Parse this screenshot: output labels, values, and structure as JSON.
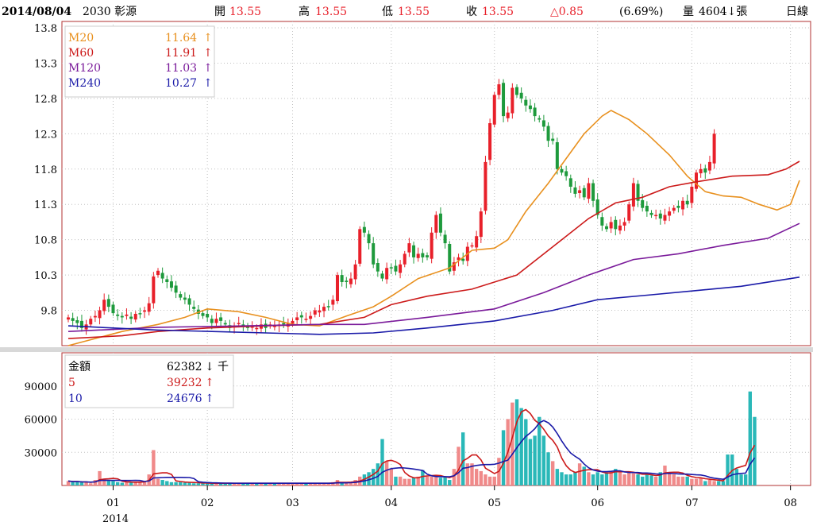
{
  "header": {
    "date": "2014/08/04",
    "stock": "2030 彰源",
    "open_label": "開",
    "open": "13.55",
    "high_label": "高",
    "high": "13.55",
    "low_label": "低",
    "low": "13.55",
    "close_label": "收",
    "close": "13.55",
    "change": "△0.85",
    "change_pct": "(6.69%)",
    "volume_label": "量",
    "volume": "4604↓張",
    "period": "日線"
  },
  "price_legend": [
    {
      "name": "M20",
      "value": "11.64",
      "arrow": "↑",
      "color": "#e8901e"
    },
    {
      "name": "M60",
      "value": "11.91",
      "arrow": "↑",
      "color": "#cc1a1a"
    },
    {
      "name": "M120",
      "value": "11.03",
      "arrow": "↑",
      "color": "#7a1a9a"
    },
    {
      "name": "M240",
      "value": "10.27",
      "arrow": "↑",
      "color": "#1a1aa8"
    }
  ],
  "volume_legend": [
    {
      "name": "金額",
      "value": "62382",
      "arrow": "↓",
      "unit": "千",
      "color": "#000000"
    },
    {
      "name": "5",
      "value": "39232",
      "arrow": "↑",
      "unit": "",
      "color": "#cc1a1a"
    },
    {
      "name": "10",
      "value": "24676",
      "arrow": "↑",
      "unit": "",
      "color": "#1a1aa8"
    }
  ],
  "colors": {
    "up": "#e8202a",
    "down": "#1e9a3c",
    "vol_up": "#f08a8a",
    "vol_down": "#2ab8b8",
    "grid": "#c0c0c0",
    "frame": "#b03030"
  },
  "chart_data": [
    {
      "type": "candlestick",
      "ylim": [
        9.3,
        13.8
      ],
      "yticks": [
        9.8,
        10.3,
        10.8,
        11.3,
        11.8,
        12.3,
        12.8,
        13.3,
        13.8
      ],
      "x_month_labels": [
        "01",
        "02",
        "03",
        "04",
        "05",
        "06",
        "07",
        "08"
      ],
      "x_month_index": [
        10,
        31,
        50,
        72,
        95,
        118,
        139,
        161
      ],
      "year_label": "2014",
      "close": [
        9.7,
        9.65,
        9.62,
        9.55,
        9.6,
        9.68,
        9.72,
        9.8,
        9.95,
        9.85,
        9.76,
        9.72,
        9.7,
        9.74,
        9.68,
        9.75,
        9.75,
        9.8,
        9.9,
        10.28,
        10.36,
        10.25,
        10.2,
        10.12,
        10.05,
        9.98,
        9.95,
        9.88,
        9.82,
        9.75,
        9.72,
        9.7,
        9.62,
        9.68,
        9.65,
        9.6,
        9.55,
        9.58,
        9.62,
        9.58,
        9.55,
        9.57,
        9.55,
        9.6,
        9.55,
        9.6,
        9.58,
        9.6,
        9.6,
        9.62,
        9.65,
        9.7,
        9.7,
        9.68,
        9.72,
        9.8,
        9.8,
        9.85,
        9.85,
        9.95,
        10.3,
        10.2,
        10.2,
        10.25,
        10.45,
        10.95,
        10.9,
        10.75,
        10.45,
        10.35,
        10.25,
        10.4,
        10.4,
        10.35,
        10.45,
        10.6,
        10.75,
        10.55,
        10.6,
        10.55,
        10.55,
        10.9,
        11.15,
        10.9,
        10.75,
        10.35,
        10.48,
        10.55,
        10.5,
        10.7,
        10.72,
        10.85,
        11.2,
        11.9,
        12.45,
        12.85,
        13.0,
        12.55,
        12.6,
        12.95,
        12.85,
        12.8,
        12.7,
        12.65,
        12.55,
        12.5,
        12.4,
        12.2,
        12.2,
        11.8,
        11.75,
        11.7,
        11.55,
        11.45,
        11.5,
        11.4,
        11.6,
        11.35,
        11.15,
        11.0,
        10.95,
        11.05,
        10.95,
        11.0,
        11.05,
        11.3,
        11.6,
        11.35,
        11.25,
        11.2,
        11.15,
        11.15,
        11.1,
        11.15,
        11.2,
        11.25,
        11.25,
        11.35,
        11.3,
        11.55,
        11.75,
        11.8,
        11.75,
        11.9,
        12.3
      ],
      "opens_note": "open/high/low drawn per candle",
      "ma": [
        {
          "name": "M20",
          "color": "#e8901e",
          "points": [
            [
              0,
              9.3
            ],
            [
              12,
              9.5
            ],
            [
              20,
              9.6
            ],
            [
              26,
              9.7
            ],
            [
              31,
              9.82
            ],
            [
              38,
              9.78
            ],
            [
              44,
              9.7
            ],
            [
              50,
              9.6
            ],
            [
              56,
              9.58
            ],
            [
              62,
              9.72
            ],
            [
              68,
              9.85
            ],
            [
              72,
              10.0
            ],
            [
              78,
              10.25
            ],
            [
              85,
              10.4
            ],
            [
              90,
              10.65
            ],
            [
              95,
              10.68
            ],
            [
              98,
              10.8
            ],
            [
              102,
              11.2
            ],
            [
              107,
              11.6
            ],
            [
              111,
              11.95
            ],
            [
              115,
              12.3
            ],
            [
              119,
              12.55
            ],
            [
              121,
              12.63
            ],
            [
              125,
              12.5
            ],
            [
              129,
              12.3
            ],
            [
              134,
              12.0
            ],
            [
              138,
              11.7
            ],
            [
              142,
              11.48
            ],
            [
              146,
              11.42
            ],
            [
              150,
              11.4
            ],
            [
              154,
              11.3
            ],
            [
              158,
              11.22
            ],
            [
              161,
              11.3
            ],
            [
              163,
              11.64
            ]
          ]
        },
        {
          "name": "M60",
          "color": "#cc1a1a",
          "points": [
            [
              0,
              9.4
            ],
            [
              12,
              9.44
            ],
            [
              20,
              9.5
            ],
            [
              31,
              9.55
            ],
            [
              44,
              9.58
            ],
            [
              56,
              9.6
            ],
            [
              66,
              9.7
            ],
            [
              72,
              9.88
            ],
            [
              80,
              10.0
            ],
            [
              90,
              10.1
            ],
            [
              100,
              10.3
            ],
            [
              110,
              10.8
            ],
            [
              116,
              11.1
            ],
            [
              122,
              11.32
            ],
            [
              128,
              11.4
            ],
            [
              134,
              11.55
            ],
            [
              140,
              11.62
            ],
            [
              148,
              11.7
            ],
            [
              156,
              11.72
            ],
            [
              160,
              11.8
            ],
            [
              163,
              11.91
            ]
          ]
        },
        {
          "name": "M120",
          "color": "#7a1a9a",
          "points": [
            [
              0,
              9.5
            ],
            [
              20,
              9.56
            ],
            [
              40,
              9.58
            ],
            [
              56,
              9.6
            ],
            [
              66,
              9.6
            ],
            [
              80,
              9.7
            ],
            [
              95,
              9.82
            ],
            [
              106,
              10.05
            ],
            [
              116,
              10.3
            ],
            [
              126,
              10.52
            ],
            [
              136,
              10.6
            ],
            [
              146,
              10.72
            ],
            [
              156,
              10.82
            ],
            [
              163,
              11.03
            ]
          ]
        },
        {
          "name": "M240",
          "color": "#1a1aa8",
          "points": [
            [
              0,
              9.58
            ],
            [
              10,
              9.55
            ],
            [
              20,
              9.52
            ],
            [
              32,
              9.5
            ],
            [
              44,
              9.48
            ],
            [
              56,
              9.46
            ],
            [
              68,
              9.48
            ],
            [
              80,
              9.55
            ],
            [
              95,
              9.65
            ],
            [
              108,
              9.8
            ],
            [
              118,
              9.95
            ],
            [
              130,
              10.02
            ],
            [
              140,
              10.08
            ],
            [
              150,
              10.14
            ],
            [
              163,
              10.27
            ]
          ]
        }
      ]
    },
    {
      "type": "bar",
      "ylim": [
        0,
        120000
      ],
      "yticks": [
        30000,
        60000,
        90000
      ],
      "values": [
        4000,
        3000,
        3500,
        2800,
        3000,
        2000,
        5000,
        13000,
        6000,
        4000,
        4000,
        3000,
        2500,
        3000,
        3000,
        3500,
        3000,
        4000,
        10000,
        32000,
        6000,
        5000,
        4000,
        3000,
        3000,
        3000,
        2500,
        3000,
        2000,
        2000,
        2000,
        2000,
        2000,
        2000,
        2000,
        2000,
        2000,
        2000,
        2000,
        2000,
        2000,
        2000,
        2000,
        2000,
        2000,
        2000,
        2000,
        2000,
        2000,
        2000,
        2000,
        2000,
        2000,
        2000,
        2000,
        2000,
        2000,
        2000,
        2000,
        3000,
        5000,
        2000,
        2000,
        3000,
        5000,
        8000,
        10000,
        12000,
        15000,
        20000,
        42000,
        22000,
        15000,
        8000,
        8000,
        6000,
        6000,
        7000,
        8000,
        14000,
        8000,
        8000,
        8000,
        7000,
        8000,
        5000,
        15000,
        35000,
        48000,
        20000,
        20000,
        15000,
        13000,
        10000,
        8000,
        8000,
        25000,
        50000,
        60000,
        75000,
        78000,
        70000,
        60000,
        42000,
        45000,
        62000,
        45000,
        30000,
        22000,
        15000,
        12000,
        10000,
        10000,
        12000,
        20000,
        17000,
        12000,
        10000,
        12000,
        10000,
        12000,
        13000,
        15000,
        12000,
        10000,
        12000,
        11000,
        10000,
        8000,
        10000,
        9000,
        8000,
        12000,
        18000,
        12000,
        10000,
        8000,
        8000,
        8000,
        6000,
        6000,
        7000,
        4000,
        5000,
        4000,
        4000,
        4000,
        28000,
        28000,
        15000,
        10000,
        10000,
        85000,
        62000
      ]
    }
  ]
}
